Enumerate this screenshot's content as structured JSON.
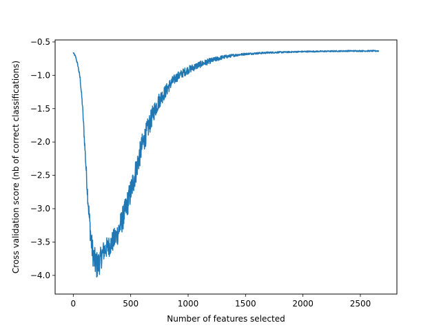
{
  "chart_data": {
    "type": "line",
    "title": "",
    "xlabel": "Number of features selected",
    "ylabel": "Cross validation score (nb of correct classifications)",
    "xlim": [
      -158,
      2818
    ],
    "ylim": [
      -4.28,
      -0.47
    ],
    "xticks": [
      0,
      500,
      1000,
      1500,
      2000,
      2500
    ],
    "yticks": [
      -4.0,
      -3.5,
      -3.0,
      -2.5,
      -2.0,
      -1.5,
      -1.0,
      -0.5
    ],
    "xtick_labels": [
      "0",
      "500",
      "1000",
      "1500",
      "2000",
      "2500"
    ],
    "ytick_labels": [
      "−4.0",
      "−3.5",
      "−3.0",
      "−2.5",
      "−2.0",
      "−1.5",
      "−1.0",
      "−0.5"
    ],
    "grid": false,
    "series": [
      {
        "color": "#1f77b4",
        "noise_envelope": {
          "x": [
            0,
            40,
            80,
            120,
            150,
            200,
            260,
            320,
            400,
            500,
            600,
            700,
            800,
            900,
            1000,
            1100,
            1200,
            1300,
            1400,
            1500,
            2000,
            2660
          ],
          "amplitude": [
            0.01,
            0.02,
            0.05,
            0.12,
            0.18,
            0.22,
            0.16,
            0.16,
            0.18,
            0.2,
            0.18,
            0.14,
            0.1,
            0.07,
            0.06,
            0.05,
            0.04,
            0.03,
            0.02,
            0.015,
            0.01,
            0.01
          ]
        },
        "x": [
          0,
          20,
          40,
          60,
          80,
          100,
          120,
          140,
          160,
          180,
          200,
          220,
          240,
          260,
          280,
          300,
          320,
          340,
          360,
          380,
          400,
          450,
          500,
          550,
          600,
          650,
          700,
          750,
          800,
          850,
          900,
          950,
          1000,
          1100,
          1200,
          1300,
          1400,
          1500,
          1600,
          1700,
          1800,
          2000,
          2200,
          2400,
          2660
        ],
        "values": [
          -0.66,
          -0.72,
          -0.85,
          -1.05,
          -1.45,
          -2.05,
          -2.65,
          -3.15,
          -3.55,
          -3.75,
          -3.85,
          -3.83,
          -3.75,
          -3.65,
          -3.6,
          -3.58,
          -3.55,
          -3.5,
          -3.45,
          -3.4,
          -3.3,
          -3.05,
          -2.75,
          -2.4,
          -2.05,
          -1.8,
          -1.55,
          -1.37,
          -1.25,
          -1.12,
          -1.03,
          -0.97,
          -0.92,
          -0.84,
          -0.78,
          -0.73,
          -0.7,
          -0.68,
          -0.67,
          -0.66,
          -0.655,
          -0.645,
          -0.64,
          -0.635,
          -0.635
        ]
      }
    ]
  }
}
